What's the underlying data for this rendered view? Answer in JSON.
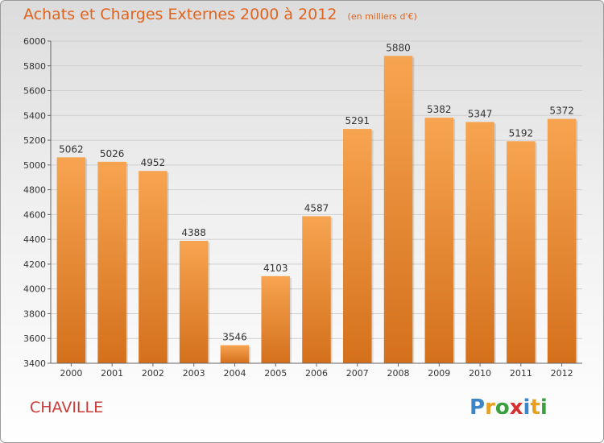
{
  "title": "Achats et Charges Externes 2000 à 2012",
  "unit_note": "(en milliers d'€)",
  "city": "CHAVILLE",
  "logo": {
    "text": "Proxiti",
    "letters": [
      {
        "ch": "P",
        "color": "#3a86c8"
      },
      {
        "ch": "r",
        "color": "#e8a020"
      },
      {
        "ch": "o",
        "color": "#3aa040"
      },
      {
        "ch": "x",
        "color": "#d83030"
      },
      {
        "ch": "i",
        "color": "#3a86c8"
      },
      {
        "ch": "t",
        "color": "#e8a020"
      },
      {
        "ch": "i",
        "color": "#3aa040"
      }
    ]
  },
  "colors": {
    "bar_top": "#f7a450",
    "bar_bottom": "#d4701c",
    "grid": "#cfcfcf",
    "text": "#333333"
  },
  "chart_data": {
    "type": "bar",
    "title": "Achats et Charges Externes 2000 à 2012",
    "categories": [
      "2000",
      "2001",
      "2002",
      "2003",
      "2004",
      "2005",
      "2006",
      "2007",
      "2008",
      "2009",
      "2010",
      "2011",
      "2012"
    ],
    "values": [
      5062,
      5026,
      4952,
      4388,
      3546,
      4103,
      4587,
      5291,
      5880,
      5382,
      5347,
      5192,
      5372
    ],
    "yticks": [
      "3400",
      "3600",
      "3800",
      "4000",
      "4200",
      "4400",
      "4600",
      "4800",
      "5000",
      "5200",
      "5400",
      "5600",
      "5800",
      "6000"
    ],
    "ylim": [
      3400,
      6000
    ],
    "xlabel": "",
    "ylabel": "",
    "grid": true,
    "legend": "none"
  }
}
